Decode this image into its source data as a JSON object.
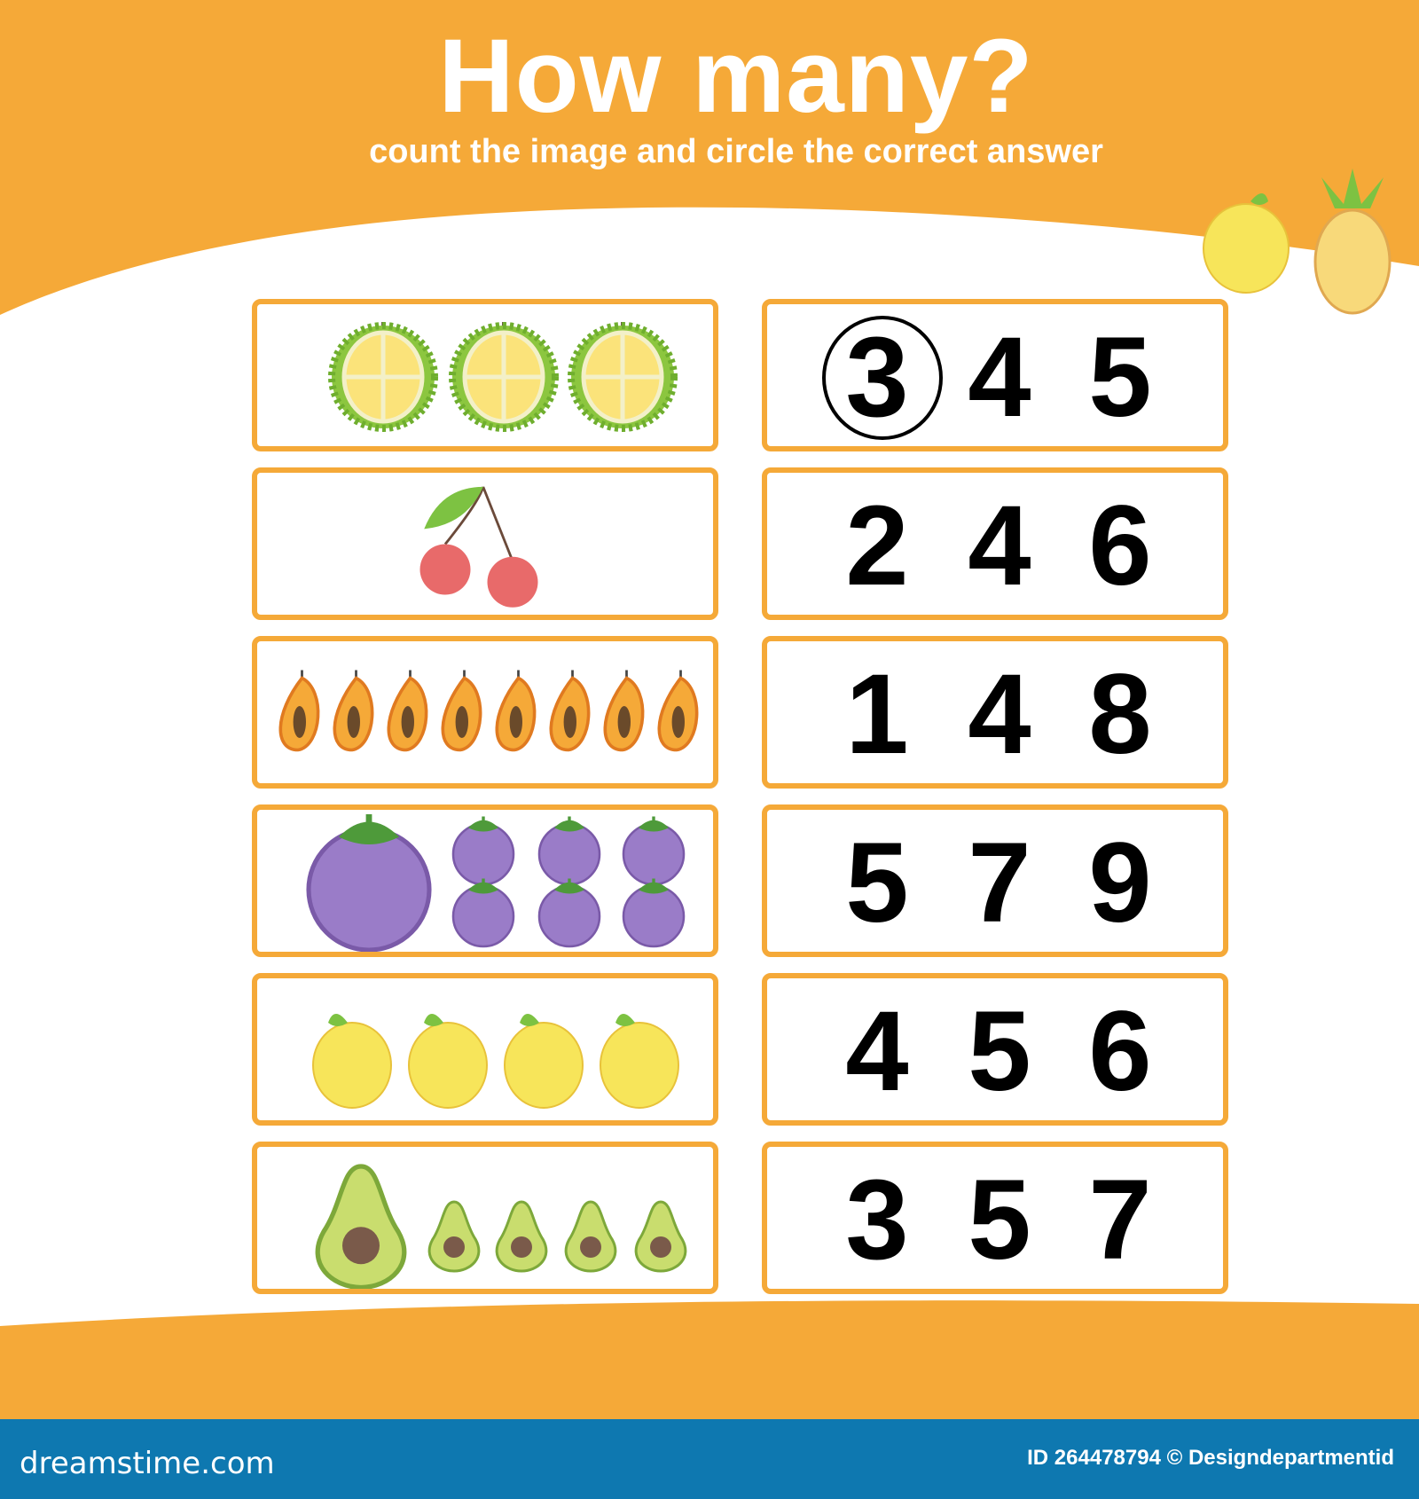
{
  "header": {
    "title": "How many?",
    "subtitle": "count the image and circle the correct answer"
  },
  "colors": {
    "orange": "#f5a938",
    "footer_blue": "#0e78b0",
    "text": "#000000"
  },
  "rows": [
    {
      "fruit": "durian",
      "count": 3,
      "options": [
        "3",
        "4",
        "5"
      ],
      "circled": 0
    },
    {
      "fruit": "cherry",
      "count": 2,
      "options": [
        "2",
        "4",
        "6"
      ],
      "circled": null
    },
    {
      "fruit": "papaya",
      "count": 8,
      "options": [
        "1",
        "4",
        "8"
      ],
      "circled": null
    },
    {
      "fruit": "mangosteen",
      "count": 7,
      "options": [
        "5",
        "7",
        "9"
      ],
      "circled": null
    },
    {
      "fruit": "lemon",
      "count": 4,
      "options": [
        "4",
        "5",
        "6"
      ],
      "circled": null
    },
    {
      "fruit": "avocado",
      "count": 5,
      "options": [
        "3",
        "5",
        "7"
      ],
      "circled": null
    }
  ],
  "decorations": [
    "lemon-icon",
    "pineapple-icon"
  ],
  "footer": {
    "logo": "dreamstime.com",
    "credit": "ID 264478794 © Designdepartmentid"
  }
}
